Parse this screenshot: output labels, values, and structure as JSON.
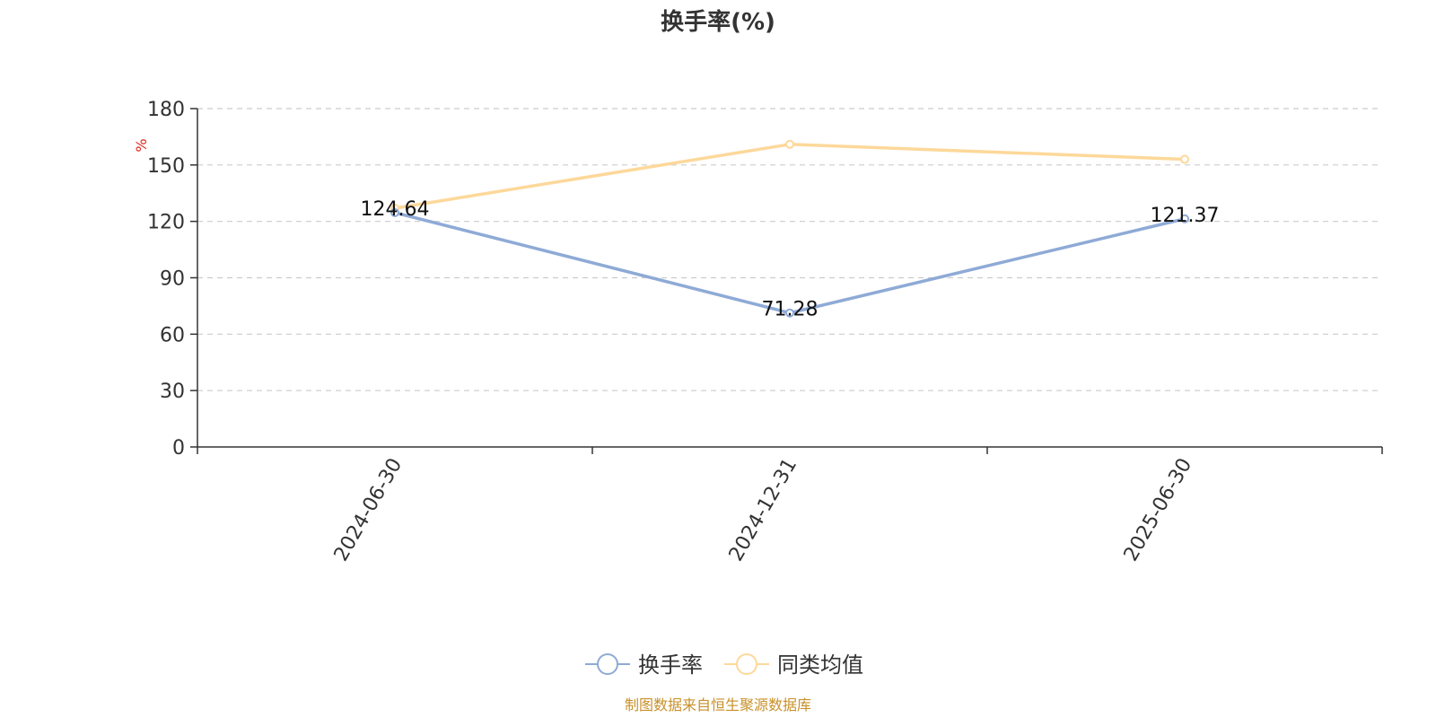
{
  "chart_data": {
    "type": "line",
    "title": "换手率(%)",
    "ylabel": "%",
    "xlabel": "",
    "categories": [
      "2024-06-30",
      "2024-12-31",
      "2025-06-30"
    ],
    "yticks": [
      0,
      30,
      60,
      90,
      120,
      150,
      180
    ],
    "ylim": [
      0,
      180
    ],
    "grid": true,
    "legend_position": "bottom-center",
    "series": [
      {
        "name": "换手率",
        "values": [
          124.64,
          71.28,
          121.37
        ],
        "color": "#8eaad6",
        "show_labels": true
      },
      {
        "name": "同类均值",
        "values": [
          127,
          161,
          153
        ],
        "color": "#fdd89a",
        "show_labels": false
      }
    ],
    "source": "制图数据来自恒生聚源数据库"
  }
}
